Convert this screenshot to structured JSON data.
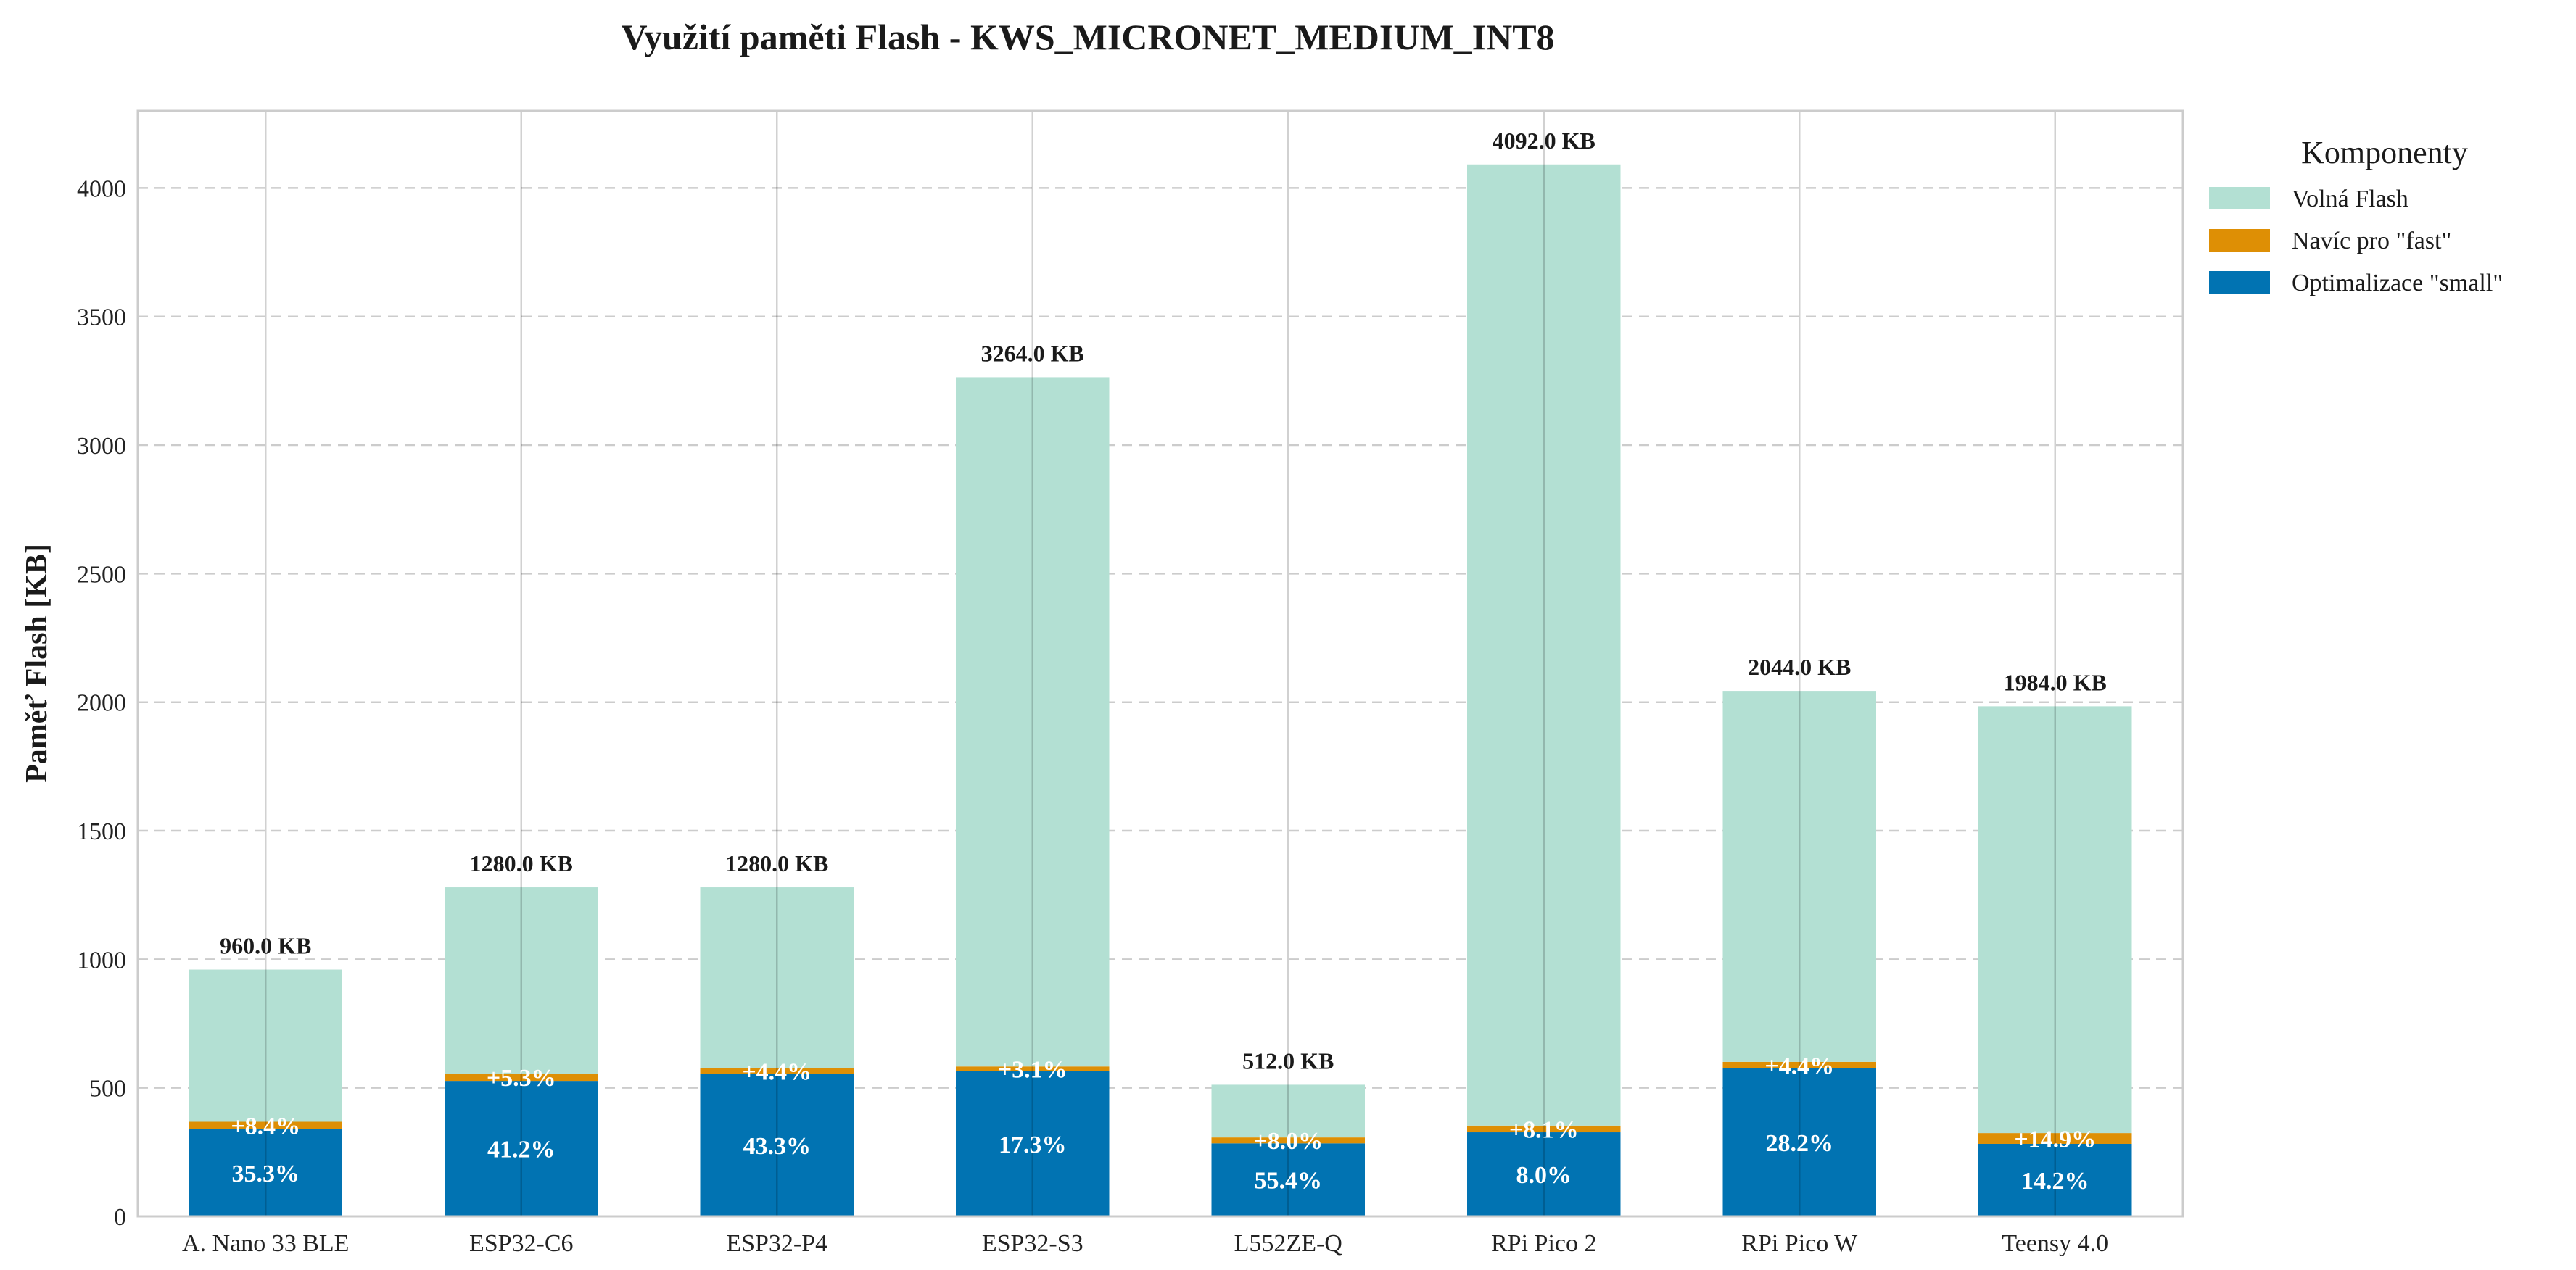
{
  "chart_data": {
    "type": "bar",
    "stacked": true,
    "title": "Využití paměti Flash - KWS_MICRONET_MEDIUM_INT8",
    "xlabel": "",
    "ylabel": "Paměť Flash [KB]",
    "ylim": [
      0,
      4300
    ],
    "yticks": [
      0,
      500,
      1000,
      1500,
      2000,
      2500,
      3000,
      3500,
      4000
    ],
    "grid": true,
    "legend": {
      "title": "Komponenty",
      "placement": "outside-top-right"
    },
    "categories": [
      "A. Nano 33 BLE",
      "ESP32-C6",
      "ESP32-P4",
      "ESP32-S3",
      "L552ZE-Q",
      "RPi Pico 2",
      "RPi Pico W",
      "Teensy 4.0"
    ],
    "series": [
      {
        "name": "Optimalizace \"small\"",
        "color": "#0173b2",
        "values": [
          339,
          527,
          554,
          565,
          284,
          327,
          576,
          282
        ]
      },
      {
        "name": "Navíc pro \"fast\"",
        "color": "#de8f05",
        "values": [
          29,
          28,
          24,
          18,
          23,
          26,
          25,
          42
        ]
      },
      {
        "name": "Volná Flash",
        "color": "#b3e0d3",
        "values": [
          592,
          725,
          702,
          2681,
          205,
          3739,
          1443,
          1660
        ]
      }
    ],
    "totals": [
      960.0,
      1280.0,
      1280.0,
      3264.0,
      512.0,
      4092.0,
      2044.0,
      1984.0
    ],
    "total_labels": [
      "960.0 KB",
      "1280.0 KB",
      "1280.0 KB",
      "3264.0 KB",
      "512.0 KB",
      "4092.0 KB",
      "2044.0 KB",
      "1984.0 KB"
    ],
    "small_pct_labels": [
      "35.3%",
      "41.2%",
      "43.3%",
      "17.3%",
      "55.4%",
      "8.0%",
      "28.2%",
      "14.2%"
    ],
    "fast_pct_labels": [
      "+8.4%",
      "+5.3%",
      "+4.4%",
      "+3.1%",
      "+8.0%",
      "+8.1%",
      "+4.4%",
      "+14.9%"
    ]
  }
}
